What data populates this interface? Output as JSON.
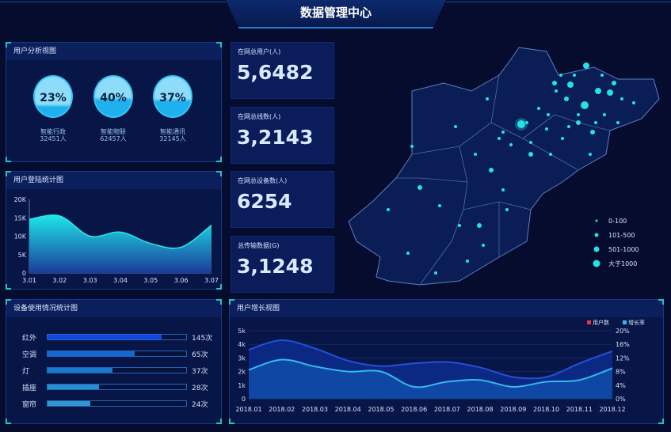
{
  "title": "数据管理中心",
  "user_analysis": {
    "title": "用户分析视图",
    "items": [
      {
        "percent": "23%",
        "fill": 0.23,
        "label": "智能行政",
        "count": "32451人"
      },
      {
        "percent": "40%",
        "fill": 0.4,
        "label": "智能物联",
        "count": "62457人"
      },
      {
        "percent": "37%",
        "fill": 0.37,
        "label": "智能通讯",
        "count": "32145人"
      }
    ]
  },
  "stats": [
    {
      "label": "在网总用户(人)",
      "value": "5,6482"
    },
    {
      "label": "在网总线数(人)",
      "value": "3,2143"
    },
    {
      "label": "在网总设备数(人)",
      "value": "6254"
    },
    {
      "label": "总传输数据(G)",
      "value": "3,1248"
    }
  ],
  "map": {
    "legend": [
      "0-100",
      "101-500",
      "501-1000",
      "大于1000"
    ],
    "dot_color": "#26e0e8"
  },
  "chart_data": [
    {
      "type": "area",
      "title": "用户登陆统计图",
      "categories": [
        "3.01",
        "3.02",
        "3.03",
        "3.04",
        "3.05",
        "3.06",
        "3.07"
      ],
      "values": [
        14600,
        15500,
        10000,
        11100,
        8000,
        7000,
        13000
      ],
      "ylim": [
        0,
        20000
      ],
      "yticks": [
        "0",
        "5K",
        "10K",
        "15K",
        "20K"
      ]
    },
    {
      "type": "bar",
      "title": "设备使用情况统计图",
      "categories": [
        "红外",
        "空调",
        "灯",
        "插座",
        "窗帘"
      ],
      "values": [
        145,
        65,
        37,
        28,
        24
      ],
      "labels": [
        "145次",
        "65次",
        "37次",
        "28次",
        "24次"
      ],
      "fill_fraction": [
        0.82,
        0.63,
        0.47,
        0.37,
        0.31
      ]
    },
    {
      "type": "area",
      "title": "用户增长视图",
      "categories": [
        "2018.01",
        "2018.02",
        "2018.03",
        "2018.04",
        "2018.05",
        "2018.06",
        "2018.07",
        "2018.08",
        "2018.09",
        "2018.10",
        "2018.11",
        "2018.12"
      ],
      "series": [
        {
          "name": "用户数",
          "axis": "left",
          "values": [
            3.6,
            4.3,
            3.7,
            2.8,
            2.4,
            2.6,
            2.7,
            2.3,
            1.6,
            1.6,
            2.6,
            3.5
          ],
          "color": "#2450d8",
          "legend_color": "#e8344a"
        },
        {
          "name": "增长率",
          "axis": "right",
          "values": [
            8.5,
            11.5,
            9.5,
            8,
            8,
            3.5,
            5,
            5.5,
            3.5,
            5,
            5.5,
            9
          ],
          "color": "#35b9f0"
        }
      ],
      "ylim_left": [
        0,
        5
      ],
      "yticks_left": [
        "0",
        "1k",
        "2k",
        "3k",
        "4k",
        "5k"
      ],
      "ylim_right": [
        0,
        20
      ],
      "yticks_right": [
        "0%",
        "4%",
        "8%",
        "12%",
        "16%",
        "20%"
      ]
    }
  ]
}
